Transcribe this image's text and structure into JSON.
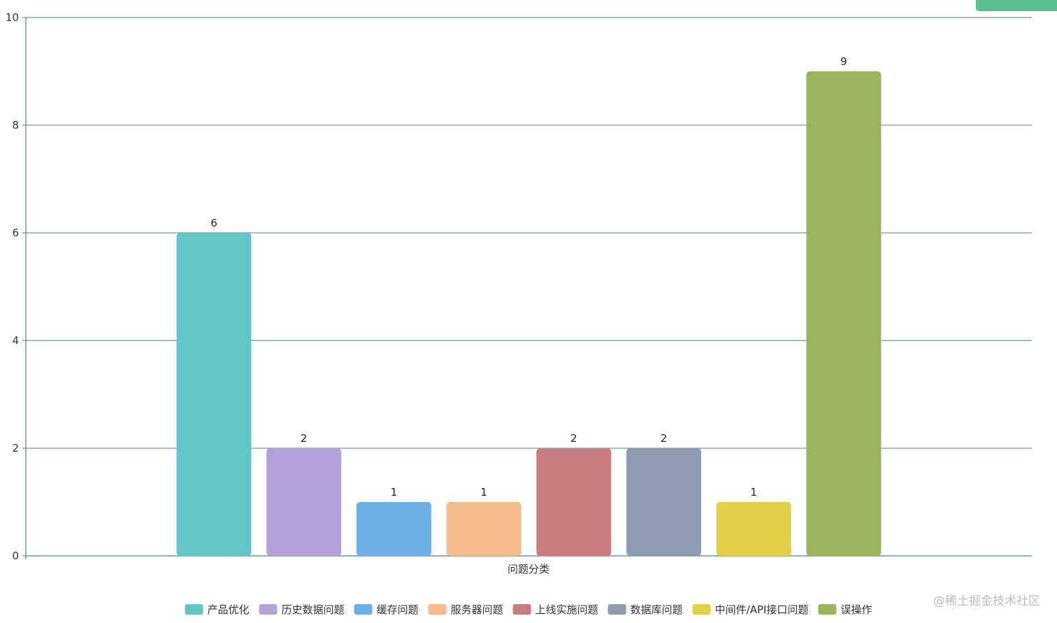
{
  "watermark": "@稀土掘金技术社区",
  "chart_data": {
    "type": "bar",
    "title": "",
    "xlabel": "问题分类",
    "ylabel": "",
    "ylim": [
      0,
      10
    ],
    "yticks": [
      0,
      2,
      4,
      6,
      8,
      10
    ],
    "grid": true,
    "legend_position": "bottom",
    "axis_color": "#4b7f8a",
    "categories": [
      "产品优化",
      "历史数据问题",
      "缓存问题",
      "服务器问题",
      "上线实施问题",
      "数据库问题",
      "中间件/API接口问题",
      "误操作"
    ],
    "values": [
      6,
      2,
      1,
      1,
      2,
      2,
      1,
      9
    ],
    "colors": [
      "#63c5c8",
      "#b3a3da",
      "#6db0e8",
      "#f4bc8d",
      "#c97b7f",
      "#8f9ab3",
      "#e2cf47",
      "#9db45f"
    ]
  }
}
